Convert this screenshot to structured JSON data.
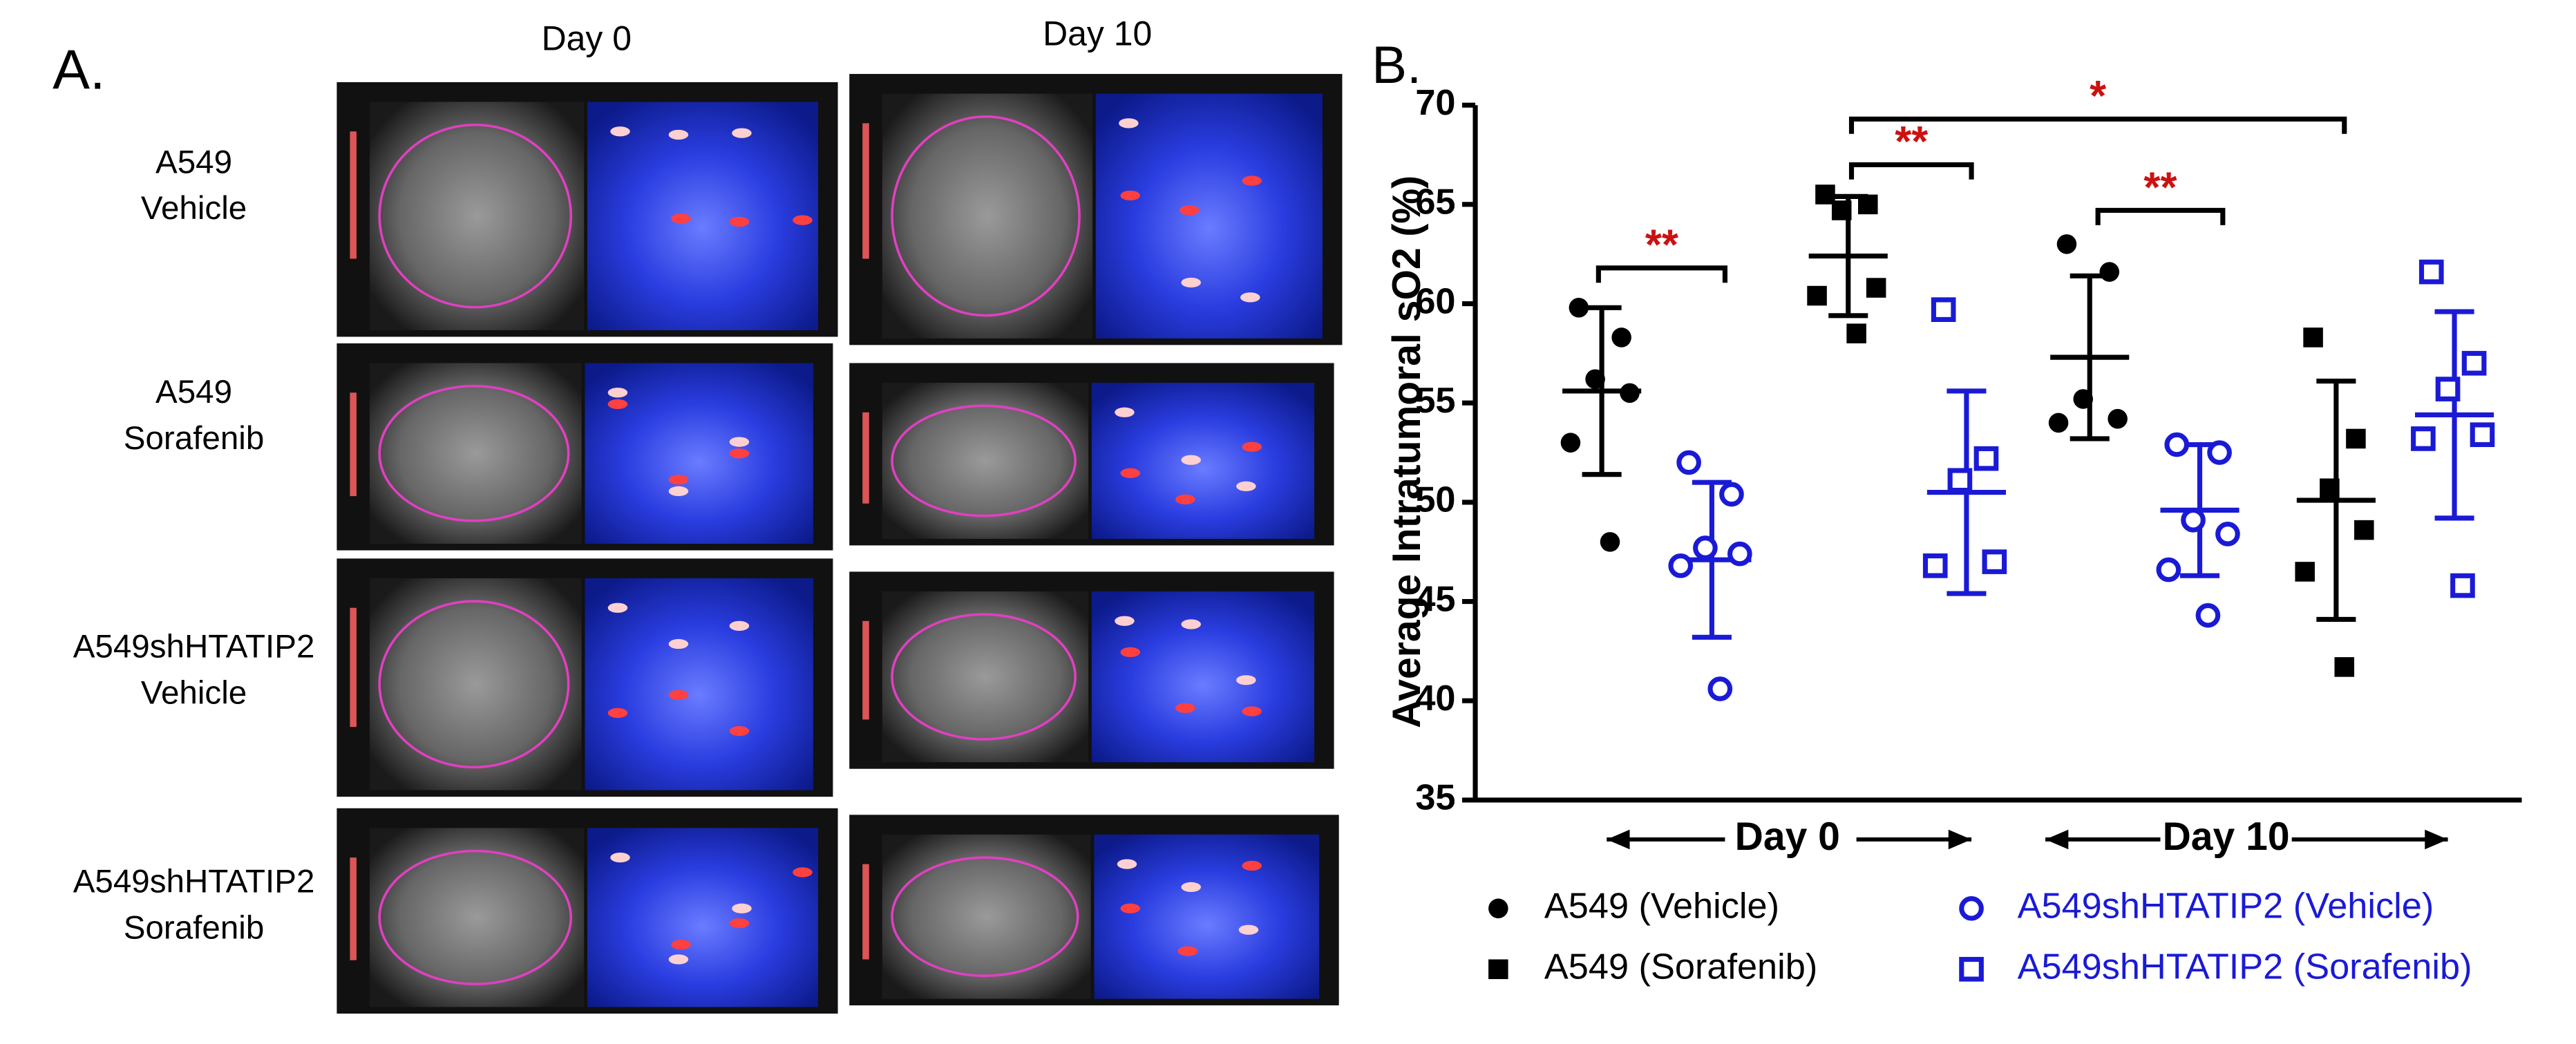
{
  "panel_a": {
    "label": "A.",
    "columns": [
      "Day 0",
      "Day 10"
    ],
    "rows": [
      [
        "A549",
        "Vehicle"
      ],
      [
        "A549",
        "Sorafenib"
      ],
      [
        "A549shHTATIP2",
        "Vehicle"
      ],
      [
        "A549shHTATIP2",
        "Sorafenib"
      ]
    ]
  },
  "chart_data": {
    "type": "scatter",
    "label": "B.",
    "y_label": "Average Intratumoral sO2 (%)",
    "categories": [
      "Day 0",
      "Day 10"
    ],
    "ylim": [
      35,
      70
    ],
    "yticks": [
      35,
      40,
      45,
      50,
      55,
      60,
      65,
      70
    ],
    "series": [
      {
        "name": "A549 (Vehicle)",
        "color": "#000000",
        "marker": "circle",
        "filled": true,
        "values": [
          [
            59.8,
            58.3,
            56.2,
            55.5,
            53.0,
            48.0
          ],
          [
            63.0,
            61.6,
            55.2,
            54.2,
            54.0
          ]
        ],
        "mean": [
          55.6,
          57.3
        ],
        "sd": [
          4.2,
          4.1
        ]
      },
      {
        "name": "A549 (Sorafenib)",
        "color": "#000000",
        "marker": "square",
        "filled": true,
        "values": [
          [
            65.5,
            65.0,
            64.7,
            60.8,
            60.4,
            58.5
          ],
          [
            58.3,
            53.2,
            50.7,
            48.6,
            46.5,
            41.7
          ]
        ],
        "mean": [
          62.4,
          50.1
        ],
        "sd": [
          3.0,
          6.0
        ]
      },
      {
        "name": "A549shHTATIP2 (Vehicle)",
        "color": "#1a1ad6",
        "marker": "circle",
        "filled": false,
        "values": [
          [
            52.0,
            50.4,
            47.7,
            47.4,
            46.8,
            40.6
          ],
          [
            52.9,
            52.5,
            49.1,
            48.4,
            46.6,
            44.3
          ]
        ],
        "mean": [
          47.1,
          49.6
        ],
        "sd": [
          3.9,
          3.3
        ]
      },
      {
        "name": "A549shHTATIP2 (Sorafenib)",
        "color": "#1a1ad6",
        "marker": "square",
        "filled": false,
        "values": [
          [
            59.7,
            52.2,
            51.1,
            47.0,
            46.8
          ],
          [
            61.6,
            57.0,
            55.7,
            53.4,
            53.2,
            45.8
          ]
        ],
        "mean": [
          50.5,
          54.4
        ],
        "sd": [
          5.1,
          5.2
        ]
      }
    ],
    "significance": [
      {
        "label": "**",
        "y": 61.8
      },
      {
        "label": "**",
        "y": 67.0
      },
      {
        "label": "**",
        "y": 64.7
      },
      {
        "label": "*",
        "y": 69.3
      }
    ],
    "significance_color": "#cc1111"
  }
}
